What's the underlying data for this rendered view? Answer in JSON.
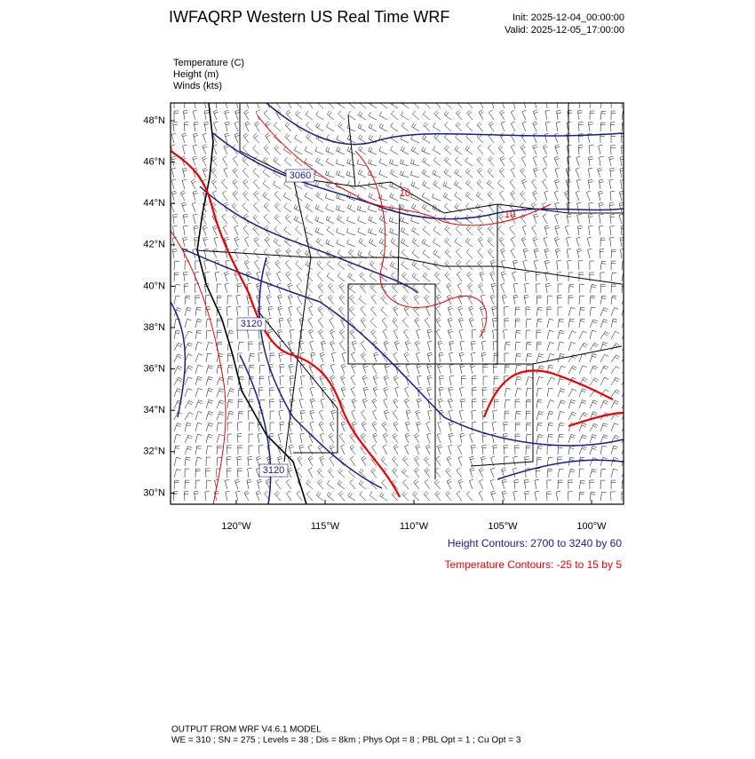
{
  "header": {
    "title": "IWFAQRP Western US Real Time WRF",
    "init": "Init: 2025-12-04_00:00:00",
    "valid": "Valid: 2025-12-05_17:00:00"
  },
  "fields": [
    "Temperature   (C)",
    "Height   (m)",
    "Winds   (kts)"
  ],
  "map": {
    "lat_labels": [
      "48°N",
      "46°N",
      "44°N",
      "42°N",
      "40°N",
      "38°N",
      "36°N",
      "34°N",
      "32°N",
      "30°N"
    ],
    "lon_labels": [
      "120°W",
      "115°W",
      "110°W",
      "105°W",
      "100°W"
    ],
    "contour_labels": [
      "3060",
      "3120",
      "3120",
      "10",
      "10"
    ]
  },
  "legend": {
    "height": "Height Contours: 2700 to 3240 by 60",
    "temperature": "Temperature Contours: -25 to 15 by 5"
  },
  "footer": {
    "model": "OUTPUT FROM WRF V4.6.1 MODEL",
    "config": "WE = 310 ; SN = 275 ; Levels = 38 ; Dis = 8km ; Phys Opt = 8 ; PBL Opt = 1 ; Cu Opt = 3"
  }
}
